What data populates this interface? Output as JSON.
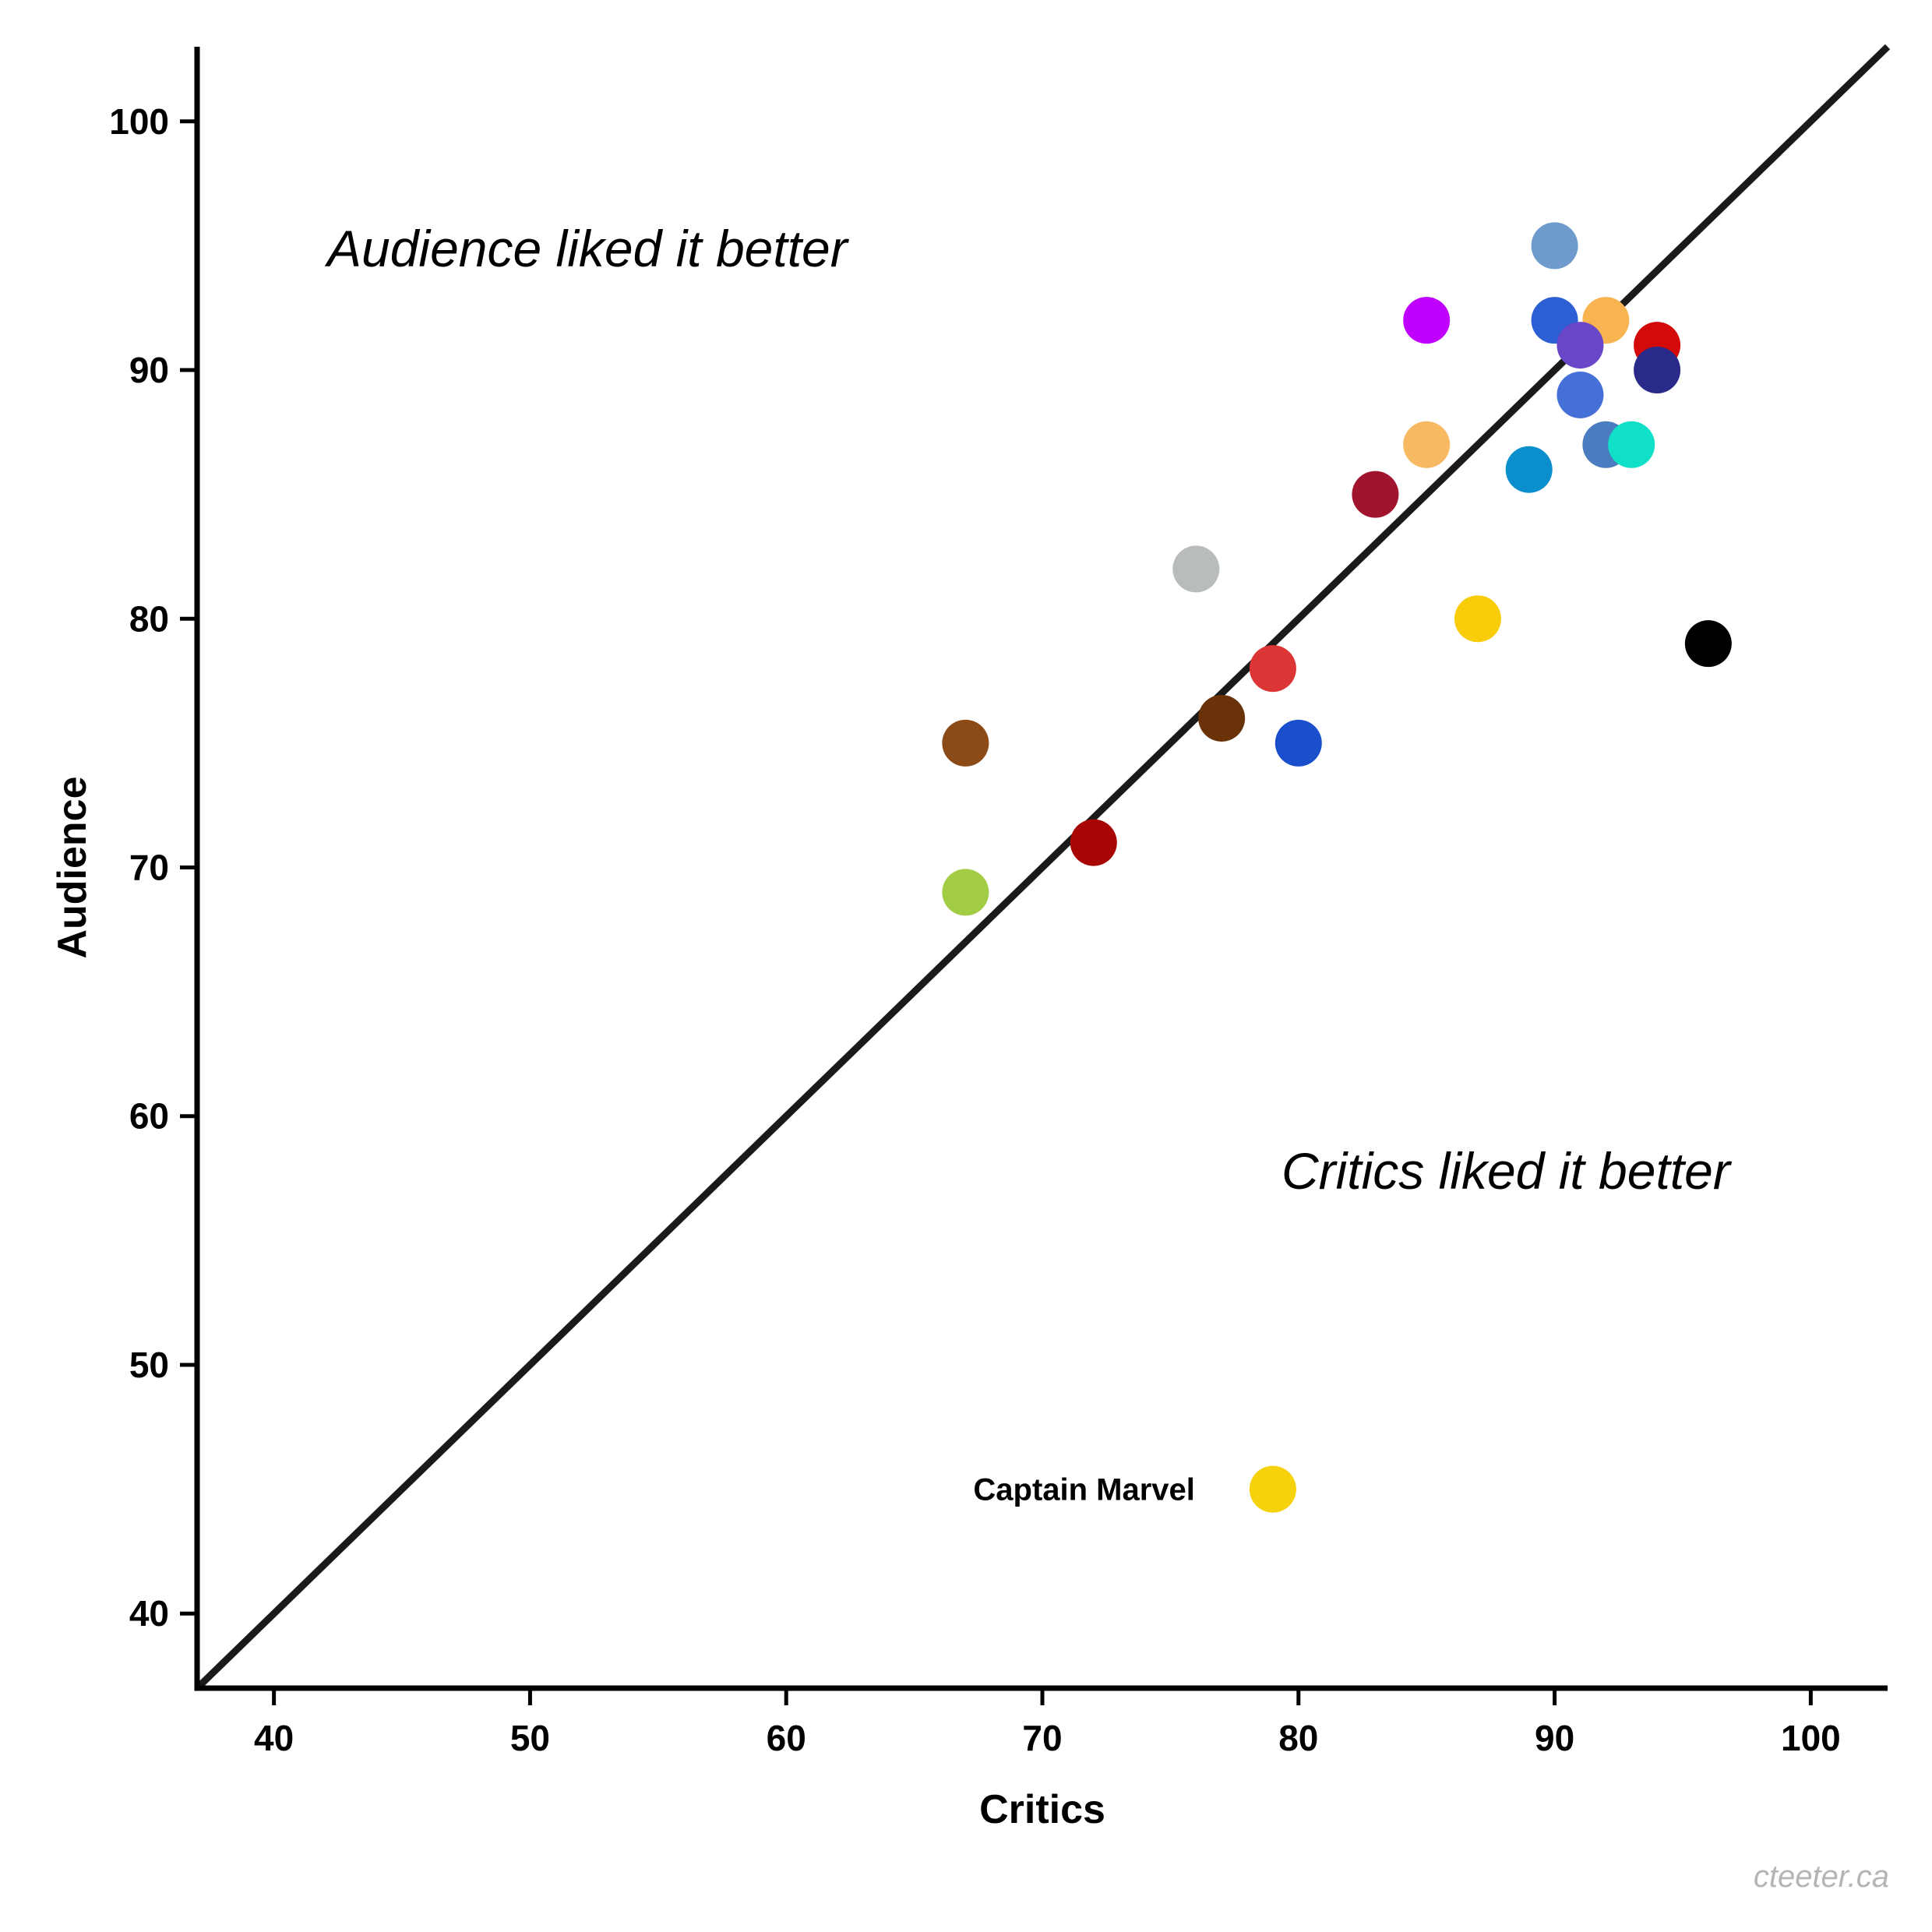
{
  "chart_data": {
    "type": "scatter",
    "xlabel": "Critics",
    "ylabel": "Audience",
    "xlim": [
      37,
      103
    ],
    "ylim": [
      37,
      103
    ],
    "xticks": [
      "40",
      "50",
      "60",
      "70",
      "80",
      "90",
      "100"
    ],
    "yticks": [
      "40",
      "50",
      "60",
      "70",
      "80",
      "90",
      "100"
    ],
    "grid": false,
    "reference_line": "y = x",
    "annotations": {
      "upper_region": "Audience liked it better",
      "lower_region": "Critics liked it better",
      "credit": "cteeter.ca"
    },
    "points": [
      {
        "x": 90,
        "y": 95,
        "color": "#6E9ACC"
      },
      {
        "x": 85,
        "y": 92,
        "color": "#C000FF"
      },
      {
        "x": 90,
        "y": 92,
        "color": "#2C5ED4"
      },
      {
        "x": 92,
        "y": 92,
        "color": "#F7B450"
      },
      {
        "x": 91,
        "y": 91,
        "color": "#6847C8"
      },
      {
        "x": 94,
        "y": 91,
        "color": "#D40A0A"
      },
      {
        "x": 94,
        "y": 90,
        "color": "#2A2A8A"
      },
      {
        "x": 91,
        "y": 89,
        "color": "#4570D8"
      },
      {
        "x": 85,
        "y": 87,
        "color": "#F7BA62"
      },
      {
        "x": 92,
        "y": 87,
        "color": "#4A7DBF"
      },
      {
        "x": 93,
        "y": 87,
        "color": "#10E0C8"
      },
      {
        "x": 89,
        "y": 86,
        "color": "#0A8ECC"
      },
      {
        "x": 83,
        "y": 85,
        "color": "#A0152D"
      },
      {
        "x": 76,
        "y": 82,
        "color": "#B8BDBA"
      },
      {
        "x": 87,
        "y": 80,
        "color": "#F9CC0A"
      },
      {
        "x": 96,
        "y": 79,
        "color": "#000000"
      },
      {
        "x": 79,
        "y": 78,
        "color": "#DC3535"
      },
      {
        "x": 77,
        "y": 76,
        "color": "#6A3208"
      },
      {
        "x": 67,
        "y": 75,
        "color": "#8B4A16"
      },
      {
        "x": 80,
        "y": 75,
        "color": "#1A4FCC"
      },
      {
        "x": 72,
        "y": 71,
        "color": "#A80505"
      },
      {
        "x": 67,
        "y": 69,
        "color": "#A3CC45"
      },
      {
        "x": 79,
        "y": 45,
        "color": "#F5D20C",
        "label": "Captain Marvel"
      }
    ]
  }
}
